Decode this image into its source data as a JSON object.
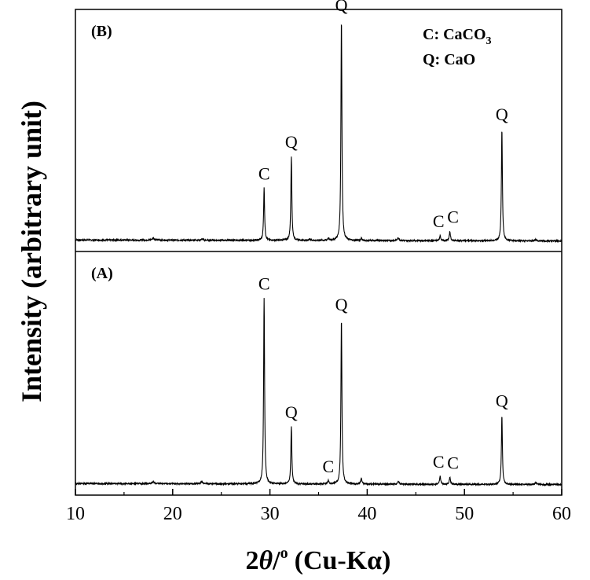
{
  "chart_data": {
    "type": "line",
    "xlabel_prefix": "2",
    "xlabel_theta": "θ",
    "xlabel_slash": "/",
    "xlabel_degree": "o",
    "xlabel_suffix": "(Cu-Kα)",
    "ylabel": "Intensity (arbitrary unit)",
    "xlim": [
      10,
      60
    ],
    "x_ticks": [
      10,
      20,
      30,
      40,
      50,
      60
    ],
    "y_ticks_shown": false,
    "legend": {
      "line1_prefix": "C: CaCO",
      "line1_sub": "3",
      "line2": "Q: CaO",
      "placement": "top-right of panel B"
    },
    "panels": [
      {
        "label": "(B)",
        "position": "top",
        "baseline": 0.03,
        "peaks": [
          {
            "x": 18.0,
            "y": 0.01,
            "w": 0.25
          },
          {
            "x": 23.0,
            "y": 0.005,
            "w": 0.2
          },
          {
            "x": 29.4,
            "y": 0.23,
            "w": 0.12,
            "label": "C"
          },
          {
            "x": 32.2,
            "y": 0.37,
            "w": 0.12,
            "label": "Q"
          },
          {
            "x": 34.1,
            "y": 0.006,
            "w": 0.2
          },
          {
            "x": 36.0,
            "y": 0.01,
            "w": 0.15
          },
          {
            "x": 37.35,
            "y": 0.97,
            "w": 0.12,
            "label": "Q"
          },
          {
            "x": 39.4,
            "y": 0.01,
            "w": 0.15
          },
          {
            "x": 43.2,
            "y": 0.012,
            "w": 0.2
          },
          {
            "x": 47.5,
            "y": 0.022,
            "w": 0.14,
            "label": "C"
          },
          {
            "x": 48.5,
            "y": 0.04,
            "w": 0.14,
            "label": "C"
          },
          {
            "x": 53.85,
            "y": 0.49,
            "w": 0.12,
            "label": "Q"
          },
          {
            "x": 57.3,
            "y": 0.006,
            "w": 0.2
          }
        ]
      },
      {
        "label": "(A)",
        "position": "bottom",
        "baseline": 0.03,
        "peaks": [
          {
            "x": 18.0,
            "y": 0.008,
            "w": 0.25
          },
          {
            "x": 23.0,
            "y": 0.01,
            "w": 0.2
          },
          {
            "x": 29.4,
            "y": 0.81,
            "w": 0.12,
            "label": "C"
          },
          {
            "x": 32.2,
            "y": 0.25,
            "w": 0.12,
            "label": "Q"
          },
          {
            "x": 36.0,
            "y": 0.015,
            "w": 0.15,
            "label": "C"
          },
          {
            "x": 37.35,
            "y": 0.72,
            "w": 0.12,
            "label": "Q"
          },
          {
            "x": 39.4,
            "y": 0.025,
            "w": 0.15
          },
          {
            "x": 43.2,
            "y": 0.012,
            "w": 0.2
          },
          {
            "x": 47.5,
            "y": 0.035,
            "w": 0.14,
            "label": "C"
          },
          {
            "x": 48.5,
            "y": 0.03,
            "w": 0.14,
            "label": "C"
          },
          {
            "x": 53.85,
            "y": 0.3,
            "w": 0.12,
            "label": "Q"
          },
          {
            "x": 57.3,
            "y": 0.008,
            "w": 0.2
          }
        ]
      }
    ],
    "colors": {
      "line": "#000000",
      "axis": "#000000",
      "background": "#ffffff"
    }
  }
}
